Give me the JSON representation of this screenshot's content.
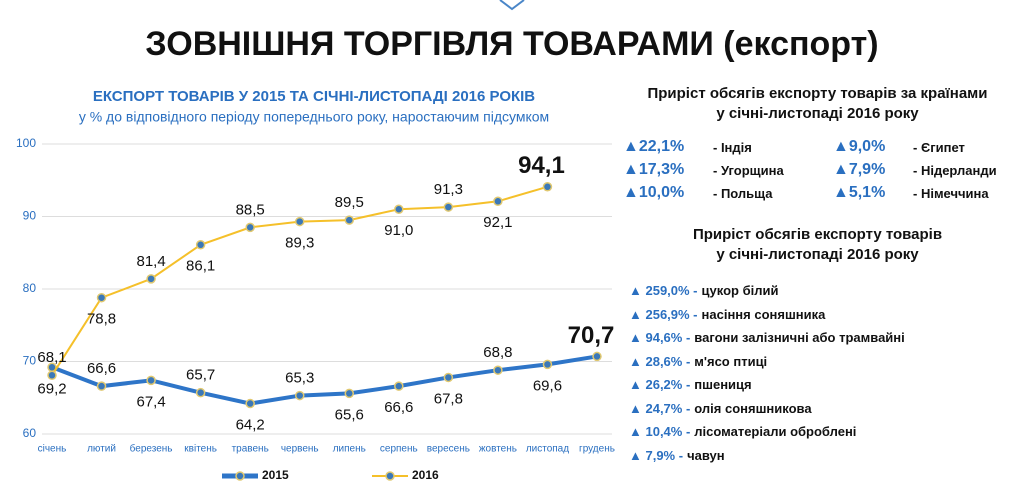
{
  "title": "ЗОВНІШНЯ ТОРГІВЛЯ ТОВАРАМИ (експорт)",
  "chart_data": {
    "type": "line",
    "title": "ЕКСПОРТ ТОВАРІВ У 2015 ТА СІЧНІ-ЛИСТОПАДІ 2016 РОКІВ",
    "subtitle": "у % до відповідного періоду попереднього року, наростаючим підсумком",
    "categories": [
      "січень",
      "лютий",
      "березень",
      "квітень",
      "травень",
      "червень",
      "липень",
      "серпень",
      "вересень",
      "жовтень",
      "листопад",
      "грудень"
    ],
    "series": [
      {
        "name": "2015",
        "color": "#2e75c8",
        "values": [
          69.2,
          66.6,
          67.4,
          65.7,
          64.2,
          65.3,
          65.6,
          66.6,
          67.8,
          68.8,
          69.6,
          70.7
        ],
        "value_labels": [
          "69,2",
          "66,6",
          "67,4",
          "65,7",
          "64,2",
          "65,3",
          "65,6",
          "66,6",
          "67,8",
          "68,8",
          "69,6",
          "70,7"
        ]
      },
      {
        "name": "2016",
        "color": "#f5c02a",
        "values": [
          68.1,
          78.8,
          81.4,
          86.1,
          88.5,
          89.3,
          89.5,
          91.0,
          91.3,
          92.1,
          94.1,
          null
        ],
        "value_labels": [
          "68,1",
          "78,8",
          "81,4",
          "86,1",
          "88,5",
          "89,3",
          "89,5",
          "91,0",
          "91,3",
          "92,1",
          "94,1",
          null
        ]
      }
    ],
    "ylim": [
      60,
      100
    ],
    "yticks": [
      60,
      70,
      80,
      90,
      100
    ],
    "grid": true
  },
  "countries": {
    "title_lines": [
      "Приріст обсягів експорту товарів за країнами",
      "у січні-листопаді 2016 року"
    ],
    "items": [
      {
        "value": "▲22,1%",
        "label": "- Індія"
      },
      {
        "value": "▲9,0%",
        "label": "- Єгипет"
      },
      {
        "value": "▲17,3%",
        "label": "- Угорщина"
      },
      {
        "value": "▲7,9%",
        "label": "- Нідерланди"
      },
      {
        "value": "▲10,0%",
        "label": "- Польща"
      },
      {
        "value": "▲5,1%",
        "label": "- Німеччина"
      }
    ]
  },
  "products": {
    "title_lines": [
      "Приріст обсягів експорту товарів",
      "у січні-листопаді 2016 року"
    ],
    "items": [
      {
        "value": "▲ 259,0% -",
        "label": "цукор білий"
      },
      {
        "value": "▲ 256,9% -",
        "label": "насіння соняшника"
      },
      {
        "value": "▲ 94,6% -",
        "label": "вагони залізничні або трамвайні"
      },
      {
        "value": "▲ 28,6% -",
        "label": "м'ясо птиці"
      },
      {
        "value": "▲ 26,2% -",
        "label": "пшениця"
      },
      {
        "value": "▲ 24,7% -",
        "label": "олія соняшникова"
      },
      {
        "value": "▲ 10,4% -",
        "label": "лісоматеріали оброблені"
      },
      {
        "value": "▲ 7,9% -",
        "label": "чавун"
      }
    ]
  }
}
